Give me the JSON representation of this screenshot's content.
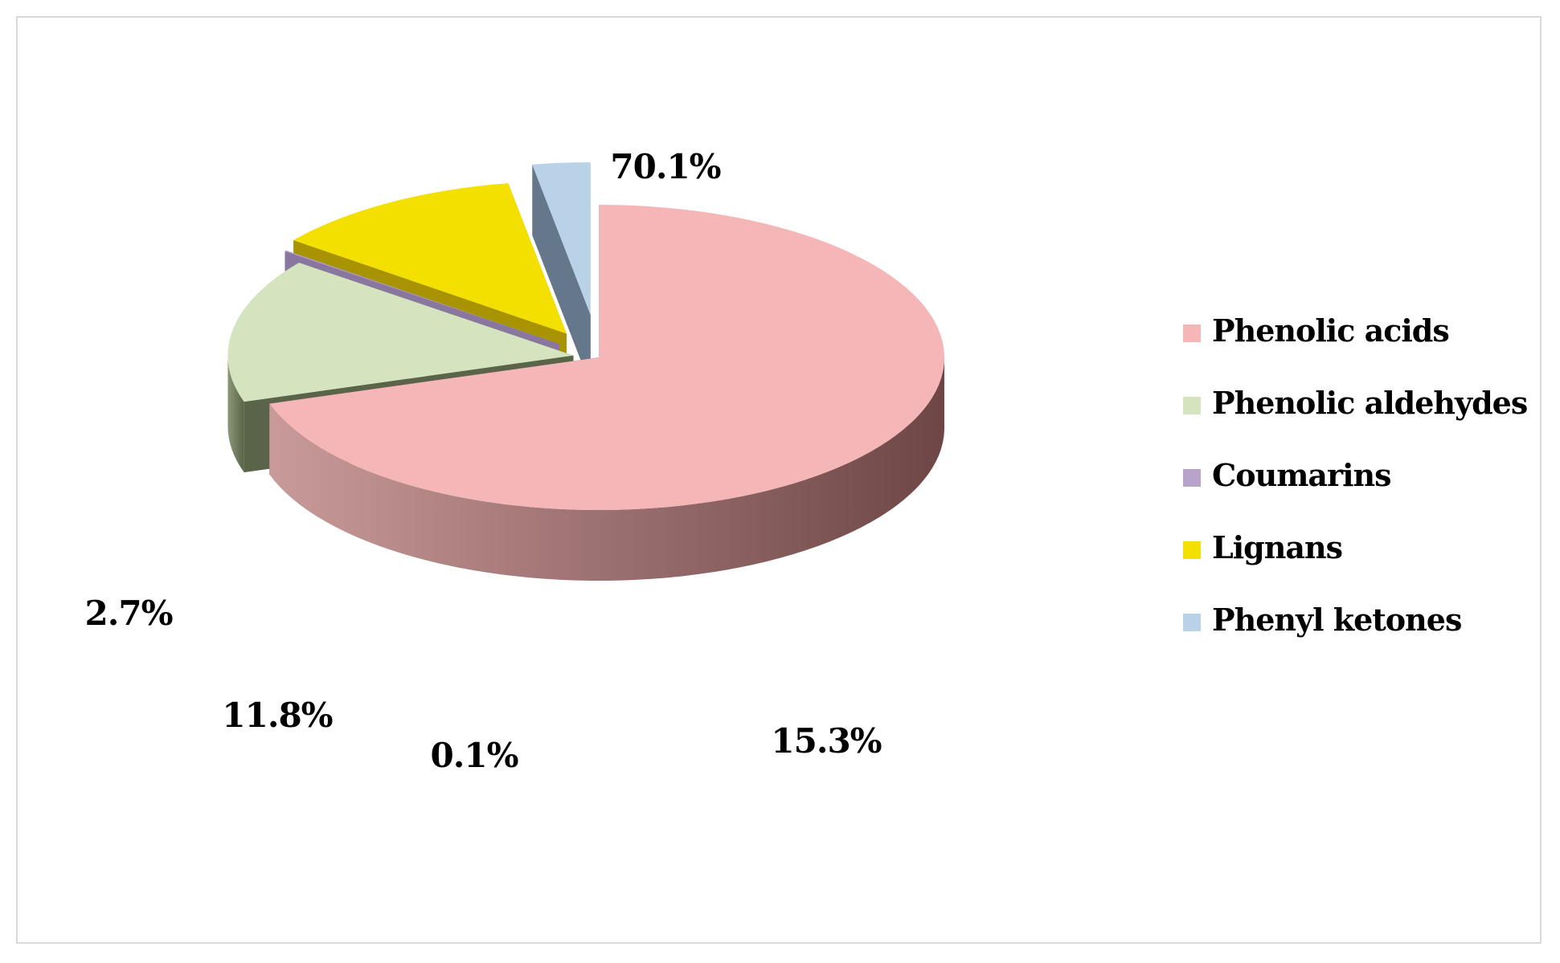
{
  "chart_data": {
    "type": "pie",
    "style": "3d-exploded",
    "legend_position": "right",
    "series": [
      {
        "name": "Phenolic acids",
        "value": 70.1,
        "label": "70.1%",
        "top_color": "#f4b6b6",
        "side_color": "#6e4646",
        "edge_color": "#c99a9a"
      },
      {
        "name": "Phenolic aldehydes",
        "value": 15.3,
        "label": "15.3%",
        "top_color": "#d3e4bf",
        "side_color": "#5a6448",
        "edge_color": "#8b9877"
      },
      {
        "name": "Coumarins",
        "value": 0.1,
        "label": "0.1%",
        "top_color": "#b8a3cb",
        "side_color": "#8a77a0",
        "edge_color": "#8a77a0"
      },
      {
        "name": "Lignans",
        "value": 11.8,
        "label": "11.8%",
        "top_color": "#f3e000",
        "side_color": "#a79400",
        "edge_color": "#d4c400"
      },
      {
        "name": "Phenyl ketones",
        "value": 2.7,
        "label": "2.7%",
        "top_color": "#b9d2e8",
        "side_color": "#65778a",
        "edge_color": "#a8c0d6"
      }
    ]
  }
}
